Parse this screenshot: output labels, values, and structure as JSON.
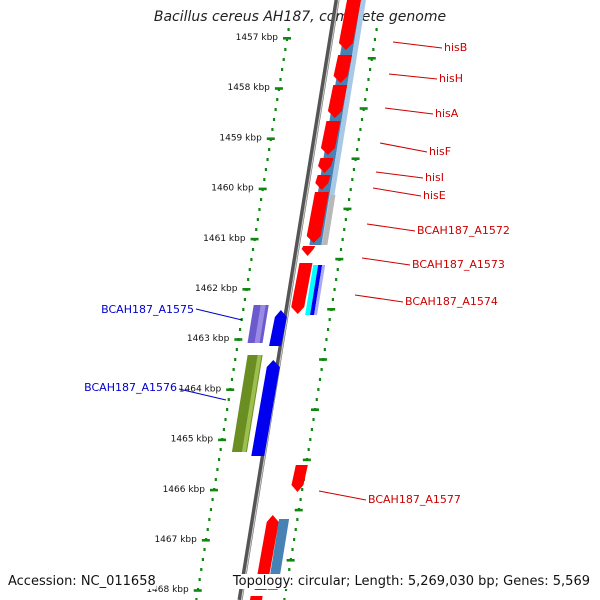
{
  "title": "Bacillus cereus AH187, complete genome",
  "footer": {
    "accession": "Accession: NC_011658",
    "info": "Topology: circular; Length: 5,269,030 bp; Genes: 5,569"
  },
  "colors": {
    "backbone": "#8a8a8a",
    "tick": "#118811",
    "forward_gene": "#ff0000",
    "reverse_gene": "#0000ee",
    "cds_blue": "#4682b4",
    "cds_green": "#6b8e23",
    "cds_purple": "#6a5acd",
    "label_red": "#cc0000",
    "label_blue": "#0000cc"
  },
  "kbp_ticks": [
    {
      "kbp": 1457,
      "label": "1457 kbp"
    },
    {
      "kbp": 1458,
      "label": "1458 kbp"
    },
    {
      "kbp": 1459,
      "label": "1459 kbp"
    },
    {
      "kbp": 1460,
      "label": "1460 kbp"
    },
    {
      "kbp": 1461,
      "label": "1461 kbp"
    },
    {
      "kbp": 1462,
      "label": "1462 kbp"
    },
    {
      "kbp": 1463,
      "label": "1463 kbp"
    },
    {
      "kbp": 1464,
      "label": "1464 kbp"
    },
    {
      "kbp": 1465,
      "label": "1465 kbp"
    },
    {
      "kbp": 1466,
      "label": "1466 kbp"
    },
    {
      "kbp": 1467,
      "label": "1467 kbp"
    },
    {
      "kbp": 1468,
      "label": "1468 kbp"
    }
  ],
  "gene_labels_right": [
    {
      "name": "hisB"
    },
    {
      "name": "hisH"
    },
    {
      "name": "hisA"
    },
    {
      "name": "hisF"
    },
    {
      "name": "hisI"
    },
    {
      "name": "hisE"
    },
    {
      "name": "BCAH187_A1572"
    },
    {
      "name": "BCAH187_A1573"
    },
    {
      "name": "BCAH187_A1574"
    },
    {
      "name": "BCAH187_A1577"
    }
  ],
  "gene_labels_left": [
    {
      "name": "BCAH187_A1575"
    },
    {
      "name": "BCAH187_A1576"
    }
  ]
}
